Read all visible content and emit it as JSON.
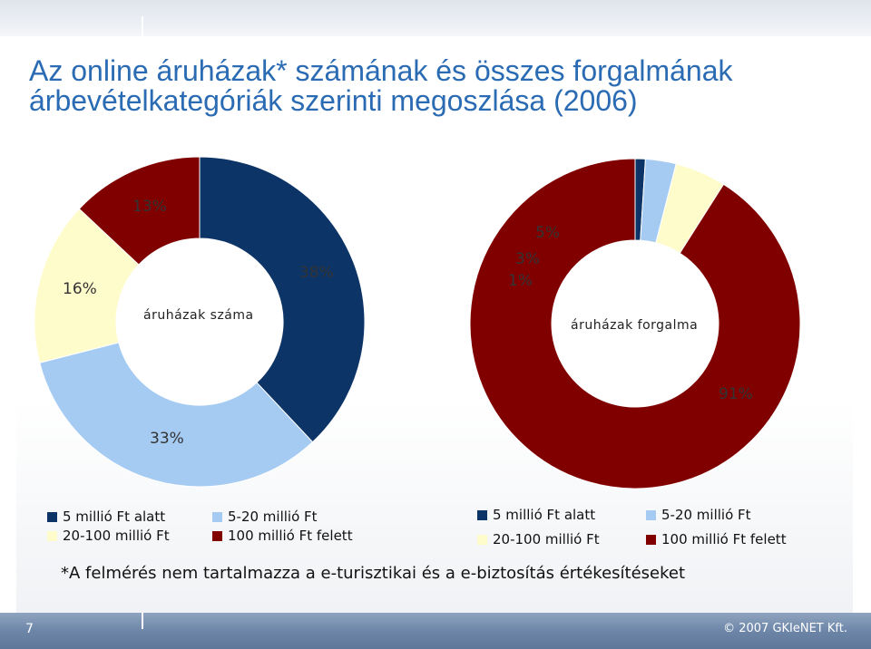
{
  "title_lines": [
    "Az online áruházak* számának és összes forgalmának",
    "árbevételkategóriák szerinti megoszlása (2006)"
  ],
  "colors": {
    "cat1": "#0d3466",
    "cat2": "#a6cbf3",
    "cat3": "#fffccc",
    "cat4": "#800000"
  },
  "chart_data": [
    {
      "type": "pie",
      "subtype": "donut",
      "title": "áruházak száma",
      "categories": [
        "5 millió Ft alatt",
        "5-20 millió Ft",
        "20-100 millió Ft",
        "100 millió Ft felett"
      ],
      "values": [
        38,
        33,
        16,
        13
      ],
      "value_labels": [
        "38%",
        "33%",
        "16%",
        "13%"
      ],
      "legend": [
        "5 millió Ft alatt",
        "5-20 millió Ft",
        "20-100 millió Ft",
        "100 millió Ft felett"
      ],
      "legend_position": "bottom"
    },
    {
      "type": "pie",
      "subtype": "donut",
      "title": "áruházak forgalma",
      "categories": [
        "5 millió Ft alatt",
        "5-20 millió Ft",
        "20-100 millió Ft",
        "100 millió Ft felett"
      ],
      "values": [
        1,
        3,
        5,
        91
      ],
      "value_labels": [
        "1%",
        "3%",
        "5%",
        "91%"
      ],
      "legend": [
        "5 millió Ft alatt",
        "5-20 millió Ft",
        "20-100 millió Ft",
        "100 millió Ft felett"
      ],
      "legend_position": "bottom"
    }
  ],
  "footnote": "*A felmérés nem tartalmazza a e-turisztikai és a e-biztosítás értékesítéseket",
  "footer": {
    "page_number": "7",
    "copyright": "© 2007 GKIeNET Kft."
  }
}
